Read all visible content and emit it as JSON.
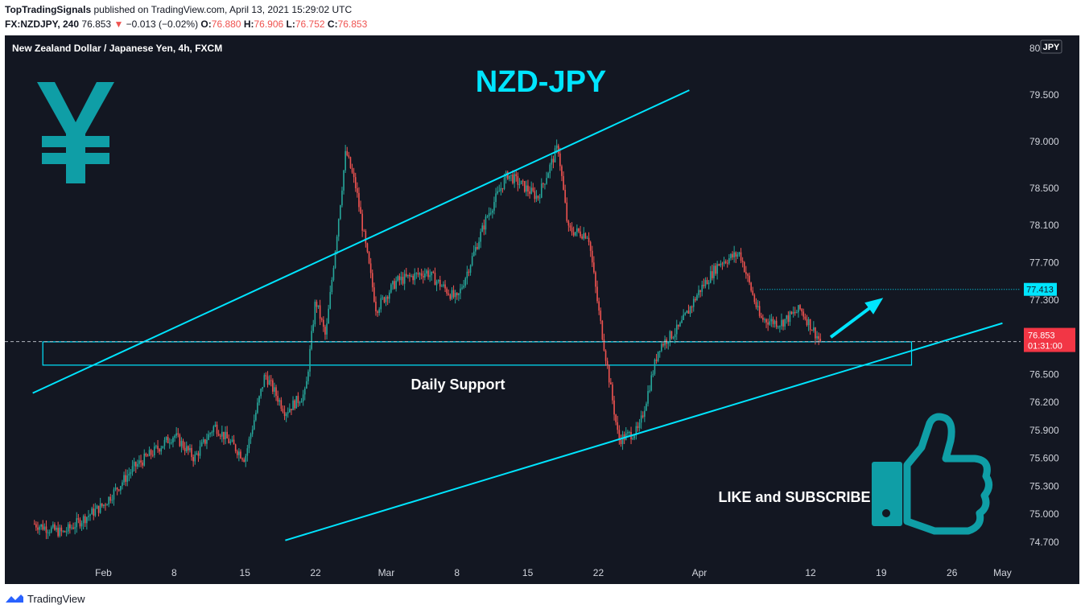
{
  "header": {
    "author": "TopTradingSignals",
    "published": "published on TradingView.com, April 13, 2021 15:29:02 UTC",
    "symbol": "FX:NZDJPY, 240",
    "last": "76.853",
    "arrow": "▼",
    "change": "−0.013 (−0.02%)",
    "o_label": "O:",
    "o": "76.880",
    "h_label": "H:",
    "h": "76.906",
    "l_label": "L:",
    "l": "76.752",
    "c_label": "C:",
    "c": "76.853"
  },
  "footer": {
    "brand": "TradingView"
  },
  "chart_data": {
    "type": "candlestick",
    "title": "NZD-JPY",
    "instrument": "New Zealand Dollar / Japanese Yen, 4h, FXCM",
    "currency": "JPY",
    "x_ticks": [
      "Feb",
      "8",
      "15",
      "22",
      "Mar",
      "8",
      "15",
      "22",
      "Apr",
      "12",
      "19",
      "26",
      "May"
    ],
    "y_ticks": [
      "80.000",
      "79.500",
      "79.000",
      "78.500",
      "78.100",
      "77.700",
      "77.300",
      "76.900",
      "76.500",
      "76.200",
      "75.900",
      "75.600",
      "75.300",
      "75.000",
      "74.700"
    ],
    "ylim": [
      74.5,
      80.1
    ],
    "price_path": [
      [
        "2021-01-25",
        74.9
      ],
      [
        "2021-01-28",
        74.8
      ],
      [
        "2021-02-01",
        75.1
      ],
      [
        "2021-02-04",
        75.5
      ],
      [
        "2021-02-08",
        75.85
      ],
      [
        "2021-02-10",
        75.6
      ],
      [
        "2021-02-12",
        75.95
      ],
      [
        "2021-02-15",
        75.6
      ],
      [
        "2021-02-17",
        76.5
      ],
      [
        "2021-02-19",
        76.1
      ],
      [
        "2021-02-21",
        76.3
      ],
      [
        "2021-02-22",
        77.3
      ],
      [
        "2021-02-23",
        76.9
      ],
      [
        "2021-02-25",
        78.9
      ],
      [
        "2021-02-26",
        78.5
      ],
      [
        "2021-02-28",
        77.2
      ],
      [
        "2021-03-02",
        77.5
      ],
      [
        "2021-03-05",
        77.6
      ],
      [
        "2021-03-08",
        77.3
      ],
      [
        "2021-03-11",
        78.2
      ],
      [
        "2021-03-13",
        78.65
      ],
      [
        "2021-03-16",
        78.4
      ],
      [
        "2021-03-18",
        78.95
      ],
      [
        "2021-03-19",
        78.05
      ],
      [
        "2021-03-21",
        78.0
      ],
      [
        "2021-03-22",
        77.2
      ],
      [
        "2021-03-24",
        75.8
      ],
      [
        "2021-03-26",
        75.9
      ],
      [
        "2021-03-28",
        76.8
      ],
      [
        "2021-03-30",
        77.0
      ],
      [
        "2021-04-01",
        77.4
      ],
      [
        "2021-04-03",
        77.7
      ],
      [
        "2021-04-05",
        77.8
      ],
      [
        "2021-04-07",
        77.1
      ],
      [
        "2021-04-09",
        77.05
      ],
      [
        "2021-04-11",
        77.2
      ],
      [
        "2021-04-13",
        76.85
      ]
    ],
    "last_price": "76.853",
    "countdown": "01:31:00",
    "target_price": "77.413",
    "zone_label": "Daily Support",
    "zone": [
      76.6,
      76.85
    ],
    "channel_upper": [
      [
        "2021-01-25",
        76.3
      ],
      [
        "2021-03-31",
        79.55
      ]
    ],
    "channel_lower": [
      [
        "2021-02-19",
        74.72
      ],
      [
        "2021-05-01",
        77.05
      ]
    ],
    "cta": "LIKE and SUBSCRIBE",
    "colors": {
      "background": "#131722",
      "up": "#26a69a",
      "down": "#ef5350",
      "lines": "#00e5ff",
      "icon": "#0f9ea6",
      "text": "#d1d4dc"
    }
  }
}
